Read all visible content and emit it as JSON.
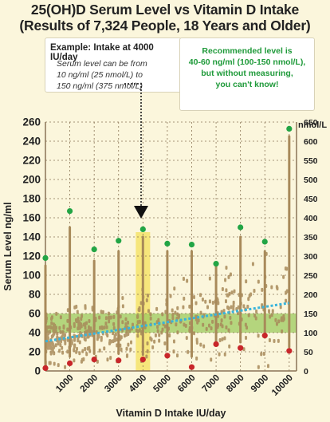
{
  "chart_data": {
    "type": "scatter",
    "title_line1": "25(OH)D Serum Level vs Vitamin D Intake",
    "title_line2": "(Results of 7,324 People, 18 Years and Older)",
    "xlabel": "Vitamin D Intake IU/day",
    "ylabel": "Serum Level ng/ml",
    "ylabel_right": "nmol/L",
    "xlim": [
      0,
      10300
    ],
    "ylim": [
      0,
      260
    ],
    "x_ticks": [
      "1000",
      "2000",
      "3000",
      "4000",
      "5000",
      "6000",
      "7000",
      "8000",
      "9000",
      "10000"
    ],
    "x_tick_values": [
      1000,
      2000,
      3000,
      4000,
      5000,
      6000,
      7000,
      8000,
      9000,
      10000
    ],
    "y_ticks": [
      0,
      20,
      40,
      60,
      80,
      100,
      120,
      140,
      160,
      180,
      200,
      220,
      240,
      260
    ],
    "y_ticks_right": [
      0,
      50,
      100,
      150,
      200,
      250,
      300,
      350,
      400,
      450,
      500,
      550,
      600,
      650
    ],
    "recommended_band_ng_ml": [
      40,
      60
    ],
    "highlight_intake_iu": 4000,
    "trend_line": {
      "x": [
        0,
        10000
      ],
      "y": [
        31,
        71
      ]
    },
    "max_points": {
      "x": [
        0,
        1000,
        2000,
        3000,
        4000,
        5000,
        6000,
        7000,
        8000,
        9000,
        10000
      ],
      "y": [
        118,
        167,
        127,
        136,
        148,
        133,
        132,
        112,
        150,
        135,
        253
      ]
    },
    "min_points": {
      "x": [
        0,
        1000,
        2000,
        3000,
        4000,
        5000,
        6000,
        7000,
        8000,
        9000,
        10000
      ],
      "y": [
        3,
        8,
        12,
        11,
        12,
        16,
        4,
        28,
        24,
        37,
        21
      ]
    },
    "vertical_ranges": {
      "x": [
        0,
        1000,
        2000,
        3000,
        4000,
        5000,
        6000,
        7000,
        8000,
        9000,
        10000
      ],
      "low": [
        8,
        15,
        18,
        18,
        17,
        22,
        15,
        30,
        30,
        40,
        25
      ],
      "high": [
        110,
        150,
        115,
        125,
        140,
        125,
        125,
        110,
        140,
        125,
        245
      ]
    },
    "colors": {
      "max_point": "#22a545",
      "min_point": "#c8262a",
      "data": "#a88a5a",
      "trend": "#38b4dc",
      "band": "#9cc95e",
      "highlight": "#f4e36a",
      "grid": "#8a7456",
      "background": "#fbf6dc"
    }
  },
  "annotations": {
    "example_heading": "Example: Intake at 4000 IU/day",
    "example_line1": "Serum level can be from",
    "example_line2": "10 ng/ml (25 nmol/L) to",
    "example_line3": "150 ng/ml (375 nmol/L)",
    "recommend_line1": "Recommended level is",
    "recommend_line2": "40-60 ng/ml (100-150 nmol/L),",
    "recommend_line3": "but without measuring,",
    "recommend_line4": "you can't know!"
  }
}
